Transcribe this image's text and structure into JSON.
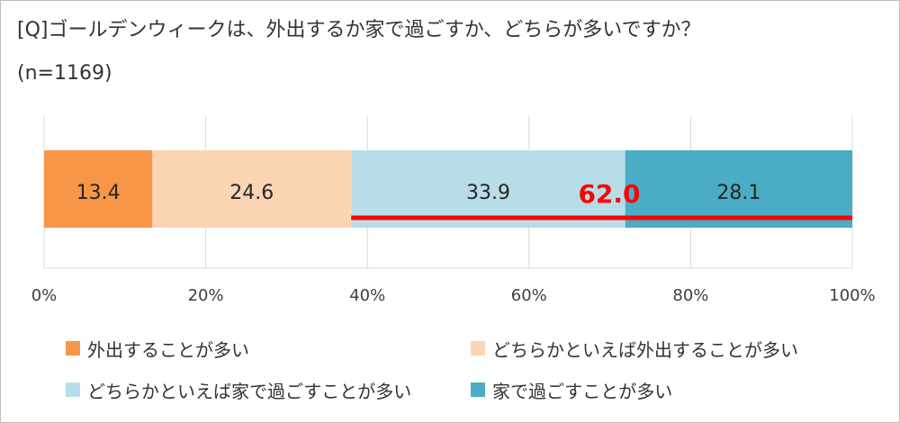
{
  "title": "[Q]ゴールデンウィークは、外出するか家で過ごすか、どちらが多いですか？",
  "subtitle": "(n=1169)",
  "chart_data": {
    "type": "bar",
    "orientation": "horizontal",
    "stacked": true,
    "title": "[Q]ゴールデンウィークは、外出するか家で過ごすか、どちらが多いですか？",
    "subtitle": "(n=1169)",
    "xlim": [
      0,
      100
    ],
    "x_ticks": [
      0,
      20,
      40,
      60,
      80,
      100
    ],
    "x_tick_labels": [
      "0%",
      "20%",
      "40%",
      "60%",
      "80%",
      "100%"
    ],
    "grid": true,
    "legend_position": "bottom",
    "series": [
      {
        "name": "外出することが多い",
        "value": 13.4,
        "label": "13.4",
        "color": "#f79646"
      },
      {
        "name": "どちらかといえば外出することが多い",
        "value": 24.6,
        "label": "24.6",
        "color": "#fcd5b4"
      },
      {
        "name": "どちらかといえば家で過ごすことが多い",
        "value": 33.9,
        "label": "33.9",
        "color": "#b7dee8"
      },
      {
        "name": "家で過ごすことが多い",
        "value": 28.1,
        "label": "28.1",
        "color": "#4bacc6"
      }
    ],
    "annotation": {
      "text": "62.0",
      "color": "#ff0000",
      "underline_from": 38.0,
      "underline_to": 100
    }
  }
}
